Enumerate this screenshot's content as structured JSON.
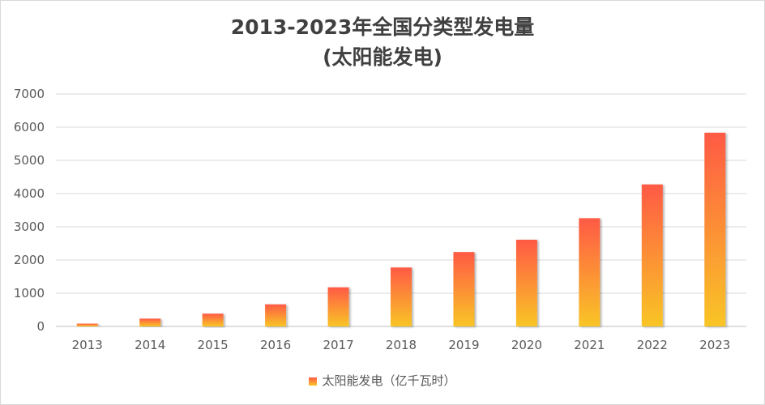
{
  "chart_data": {
    "type": "bar",
    "title_lines": [
      "2013-2023年全国分类型发电量",
      "(太阳能发电)"
    ],
    "categories": [
      "2013",
      "2014",
      "2015",
      "2016",
      "2017",
      "2018",
      "2019",
      "2020",
      "2021",
      "2022",
      "2023"
    ],
    "series": [
      {
        "name": "太阳能发电（亿千瓦时）",
        "values": [
          84,
          235,
          385,
          665,
          1178,
          1775,
          2240,
          2611,
          3259,
          4276,
          5833
        ]
      }
    ],
    "yticks": [
      "0",
      "1000",
      "2000",
      "3000",
      "4000",
      "5000",
      "6000",
      "7000"
    ],
    "ylim": [
      0,
      7000
    ],
    "grid": true,
    "legend_position": "bottom",
    "colors": {
      "bar_top": "#ff5a45",
      "bar_bottom": "#f9c526",
      "grid": "#d9d9d9",
      "axis": "#bfbfbf"
    }
  }
}
